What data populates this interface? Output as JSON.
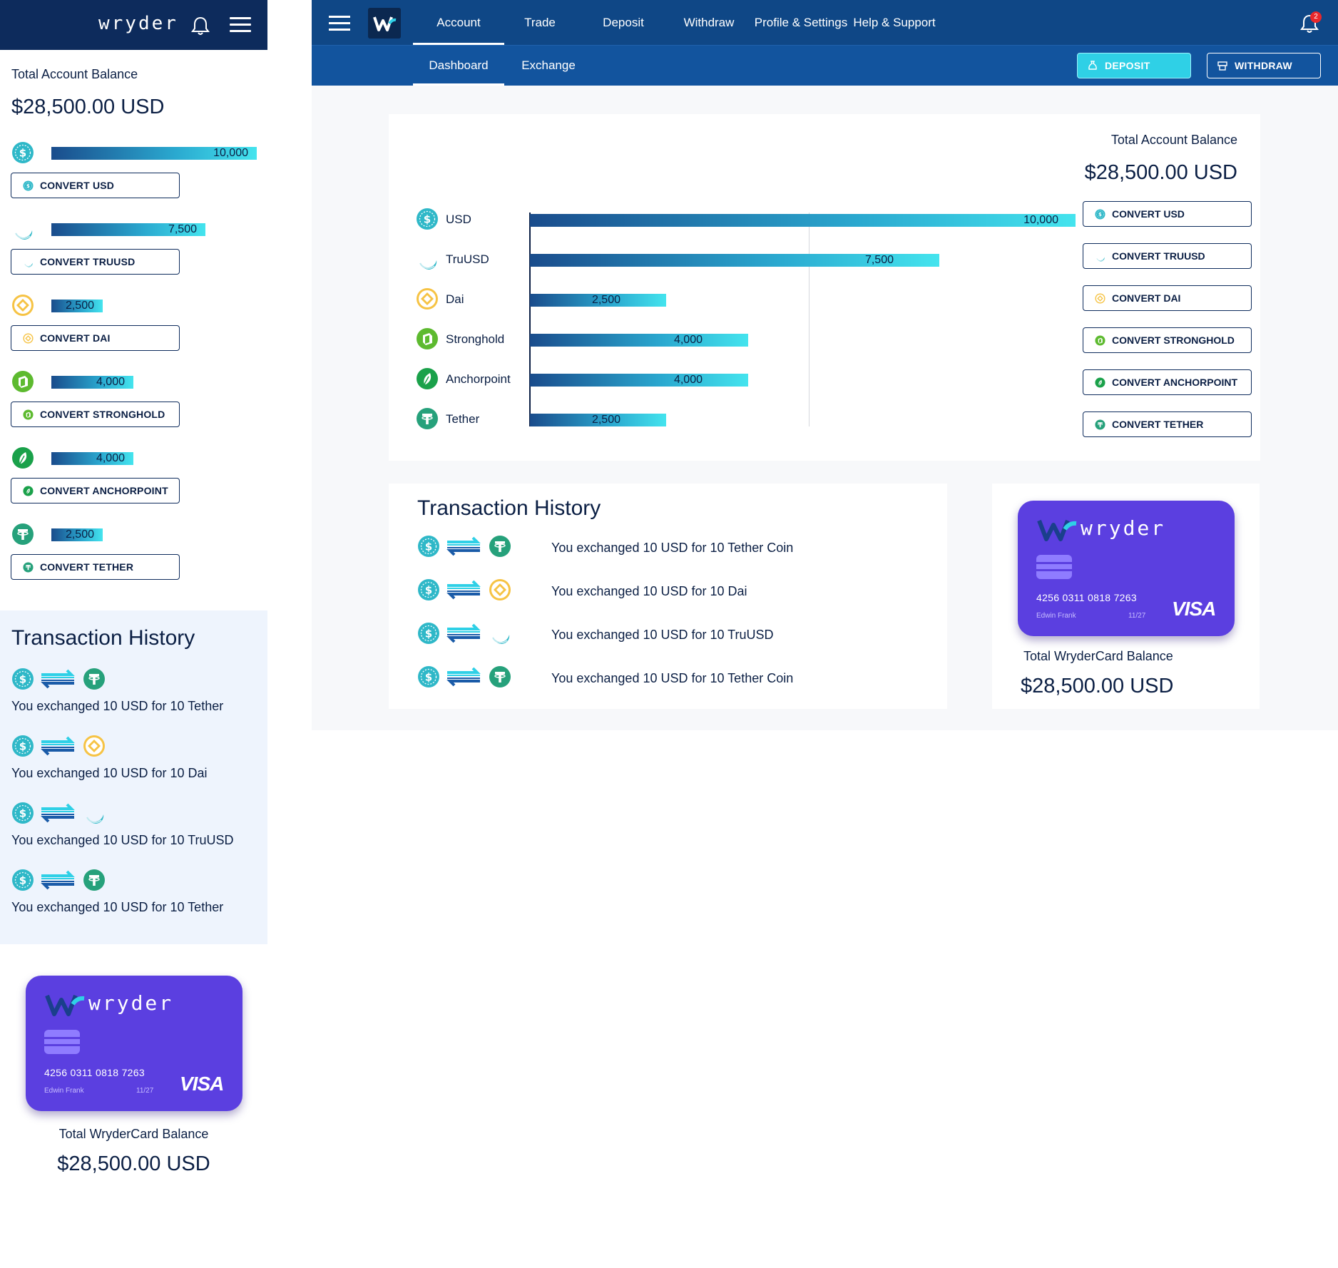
{
  "brand": {
    "name": "wryder",
    "primary": "#0d2b5c",
    "accent": "#2fd0e6",
    "card_color": "#5b3fe0"
  },
  "mobile": {
    "logo": "wryder",
    "icons": [
      "bell-icon",
      "hamburger-menu-icon"
    ],
    "balance_label": "Total Account Balance",
    "balance_value": "$28,500.00 USD",
    "balances": [
      {
        "coin": "usd-coin-icon",
        "value_label": "10,000",
        "share": 1.0,
        "button": "CONVERT USD"
      },
      {
        "coin": "truusd-coin-icon",
        "value_label": "7,500",
        "share": 0.75,
        "button": "CONVERT TRUUSD"
      },
      {
        "coin": "dai-coin-icon",
        "value_label": "2,500",
        "share": 0.25,
        "button": "CONVERT DAI"
      },
      {
        "coin": "stronghold-coin-icon",
        "value_label": "4,000",
        "share": 0.4,
        "button": "CONVERT STRONGHOLD"
      },
      {
        "coin": "anchorpoint-coin-icon",
        "value_label": "4,000",
        "share": 0.4,
        "button": "CONVERT ANCHORPOINT"
      },
      {
        "coin": "tether-coin-icon",
        "value_label": "2,500",
        "share": 0.25,
        "button": "CONVERT TETHER"
      }
    ],
    "tx_title": "Transaction History",
    "transactions": [
      {
        "from": "usd",
        "to": "tether",
        "text": "You exchanged 10 USD for 10 Tether"
      },
      {
        "from": "usd",
        "to": "dai",
        "text": "You exchanged 10 USD for 10 Dai"
      },
      {
        "from": "usd",
        "to": "truusd",
        "text": "You exchanged 10 USD for 10 TruUSD"
      },
      {
        "from": "usd",
        "to": "tether",
        "text": "You exchanged 10 USD for 10 Tether"
      }
    ],
    "card": {
      "brand": "wryder",
      "number": "4256 0311 0818 7263",
      "holder": "Edwin Frank",
      "expiry": "11/27",
      "network": "VISA"
    },
    "card_balance_label": "Total WryderCard Balance",
    "card_balance_value": "$28,500.00 USD"
  },
  "desktop": {
    "nav": [
      "Account",
      "Trade",
      "Deposit",
      "Withdraw",
      "Profile & Settings",
      "Help & Support"
    ],
    "nav_active": "Account",
    "notifications_count": "2",
    "subnav": [
      "Dashboard",
      "Exchange"
    ],
    "subnav_active": "Dashboard",
    "deposit_label": "DEPOSIT",
    "withdraw_label": "WITHDRAW",
    "balance_label": "Total Account Balance",
    "balance_value": "$28,500.00 USD",
    "tx_title": "Transaction History",
    "transactions": [
      {
        "from": "usd",
        "to": "tether",
        "text": "You exchanged 10 USD for 10 Tether Coin"
      },
      {
        "from": "usd",
        "to": "dai",
        "text": "You exchanged 10 USD for 10 Dai"
      },
      {
        "from": "usd",
        "to": "truusd",
        "text": "You exchanged 10 USD for 10 TruUSD"
      },
      {
        "from": "usd",
        "to": "tether",
        "text": "You exchanged 10 USD for 10 Tether Coin"
      }
    ],
    "card": {
      "brand": "wryder",
      "number": "4256 0311 0818 7263",
      "holder": "Edwin Frank",
      "expiry": "11/27",
      "network": "VISA"
    },
    "card_balance_label": "Total WryderCard Balance",
    "card_balance_value": "$28,500.00 USD"
  },
  "chart_data": {
    "type": "bar",
    "orientation": "horizontal",
    "categories": [
      "USD",
      "TruUSD",
      "Dai",
      "Stronghold",
      "Anchorpoint",
      "Tether"
    ],
    "values": [
      10000,
      7500,
      2500,
      4000,
      4000,
      2500
    ],
    "value_labels": [
      "10,000",
      "7,500",
      "2,500",
      "4,000",
      "4,000",
      "2,500"
    ],
    "buttons": [
      "CONVERT USD",
      "CONVERT TRUUSD",
      "CONVERT DAI",
      "CONVERT STRONGHOLD",
      "CONVERT ANCHORPOINT",
      "CONVERT TETHER"
    ],
    "xlim": [
      0,
      10000
    ],
    "grid": true
  }
}
